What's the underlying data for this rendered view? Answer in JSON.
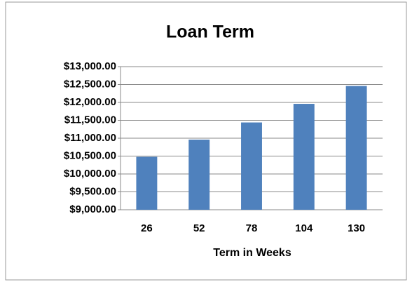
{
  "chart_data": {
    "type": "bar",
    "title": "Loan Term",
    "x_label": "Term in Weeks",
    "categories": [
      "26",
      "52",
      "78",
      "104",
      "130"
    ],
    "values": [
      10480,
      10960,
      11440,
      11960,
      12460
    ],
    "color": "#4f81bd",
    "ylim": [
      9000,
      13000
    ],
    "yticks": [
      {
        "value": 9000,
        "label": "$9,000.00"
      },
      {
        "value": 9500,
        "label": "$9,500.00"
      },
      {
        "value": 10000,
        "label": "$10,000.00"
      },
      {
        "value": 10500,
        "label": "$10,500.00"
      },
      {
        "value": 11000,
        "label": "$11,000.00"
      },
      {
        "value": 11500,
        "label": "$11,500.00"
      },
      {
        "value": 12000,
        "label": "$12,000.00"
      },
      {
        "value": 12500,
        "label": "$12,500.00"
      },
      {
        "value": 13000,
        "label": "$13,000.00"
      }
    ],
    "grid": true
  }
}
